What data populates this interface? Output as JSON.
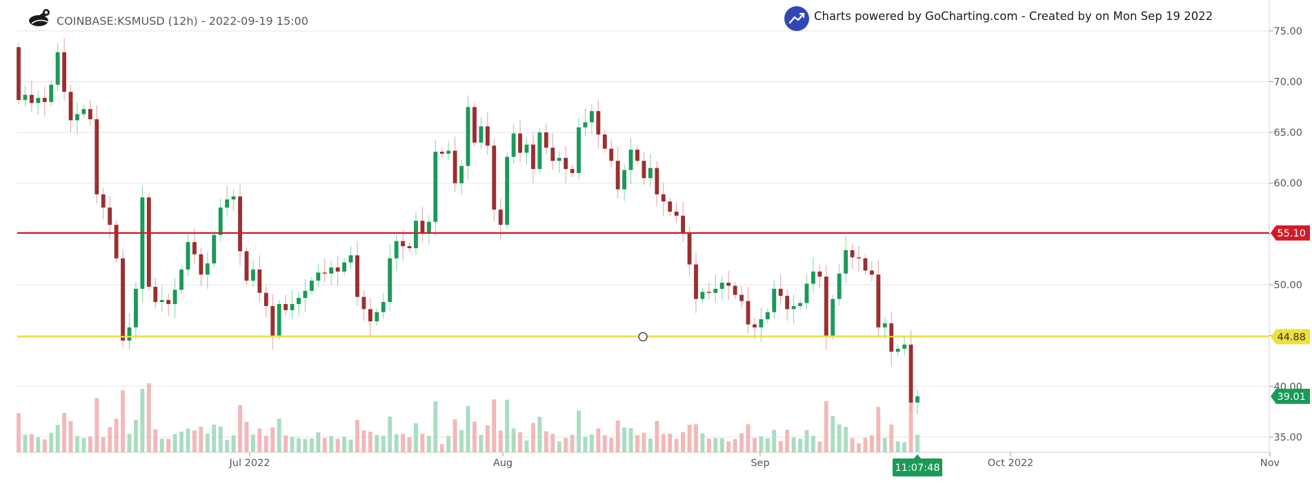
{
  "header": {
    "title": "COINBASE:KSMUSD (12h) - 2022-09-19 15:00",
    "brand": "Charts powered by GoCharting.com - Created by  on Mon Sep 19 2022"
  },
  "icons": {
    "logo": "gocharting-logo-icon",
    "brand": "trend-up-icon"
  },
  "colors": {
    "up": "#1a9a57",
    "down": "#9b2f2f",
    "volume_up": "#a9ddc1",
    "volume_down": "#f4b7b7",
    "resistance": "#cf1c2b",
    "support": "#eedf3a",
    "grid": "#e3e3e3",
    "axis_text": "#555555"
  },
  "chart_data": {
    "type": "candlestick",
    "symbol": "COINBASE:KSMUSD",
    "interval": "12h",
    "x_axis": {
      "labels": [
        "Jul 2022",
        "Aug",
        "Sep",
        "Oct 2022",
        "Nov"
      ]
    },
    "y_axis": {
      "ticks": [
        "75.00",
        "70.00",
        "65.00",
        "60.00",
        "55.00",
        "50.00",
        "45.00",
        "40.00",
        "35.00"
      ],
      "range": [
        33.5,
        77.5
      ]
    },
    "horizontal_lines": [
      {
        "label": "55.10",
        "value": 55.1,
        "color": "#cf1c2b"
      },
      {
        "label": "44.88",
        "value": 44.88,
        "color": "#eedf3a"
      }
    ],
    "last_price": {
      "label": "39.01",
      "value": 39.01
    },
    "countdown": "11:07:48",
    "closes": [
      68.2,
      68.7,
      67.9,
      68.4,
      68.0,
      69.7,
      72.9,
      69.0,
      66.2,
      66.8,
      67.3,
      66.3,
      58.9,
      57.6,
      55.9,
      52.6,
      44.5,
      45.8,
      49.6,
      58.6,
      49.8,
      48.3,
      48.5,
      48.1,
      49.5,
      51.5,
      54.2,
      53.0,
      51.0,
      52.1,
      54.9,
      57.6,
      58.4,
      58.7,
      53.3,
      50.4,
      51.5,
      49.2,
      47.9,
      45.0,
      48.1,
      47.5,
      48.1,
      48.7,
      49.4,
      50.4,
      51.2,
      51.1,
      51.7,
      51.3,
      52.2,
      52.9,
      48.8,
      47.6,
      46.4,
      47.3,
      48.3,
      52.6,
      54.3,
      53.8,
      53.6,
      56.3,
      55.1,
      56.2,
      63.1,
      62.9,
      63.2,
      60.0,
      61.7,
      67.5,
      64.0,
      65.6,
      63.7,
      57.4,
      55.9,
      62.6,
      64.9,
      63.0,
      63.8,
      61.4,
      65.0,
      63.5,
      62.2,
      62.5,
      61.4,
      61.0,
      65.5,
      66.0,
      67.1,
      64.8,
      63.4,
      62.2,
      59.4,
      61.3,
      63.3,
      62.2,
      60.5,
      61.5,
      58.9,
      58.2,
      57.2,
      56.8,
      55.1,
      52.0,
      48.6,
      49.3,
      49.2,
      49.6,
      50.2,
      49.9,
      49.0,
      48.4,
      46.1,
      45.8,
      46.6,
      47.3,
      49.6,
      48.9,
      47.6,
      47.9,
      48.2,
      50.1,
      51.3,
      50.8,
      45.0,
      48.6,
      51.1,
      53.4,
      52.7,
      52.6,
      51.4,
      51.0,
      45.8,
      46.2,
      43.4,
      43.7,
      44.1,
      38.4,
      39.01
    ]
  }
}
